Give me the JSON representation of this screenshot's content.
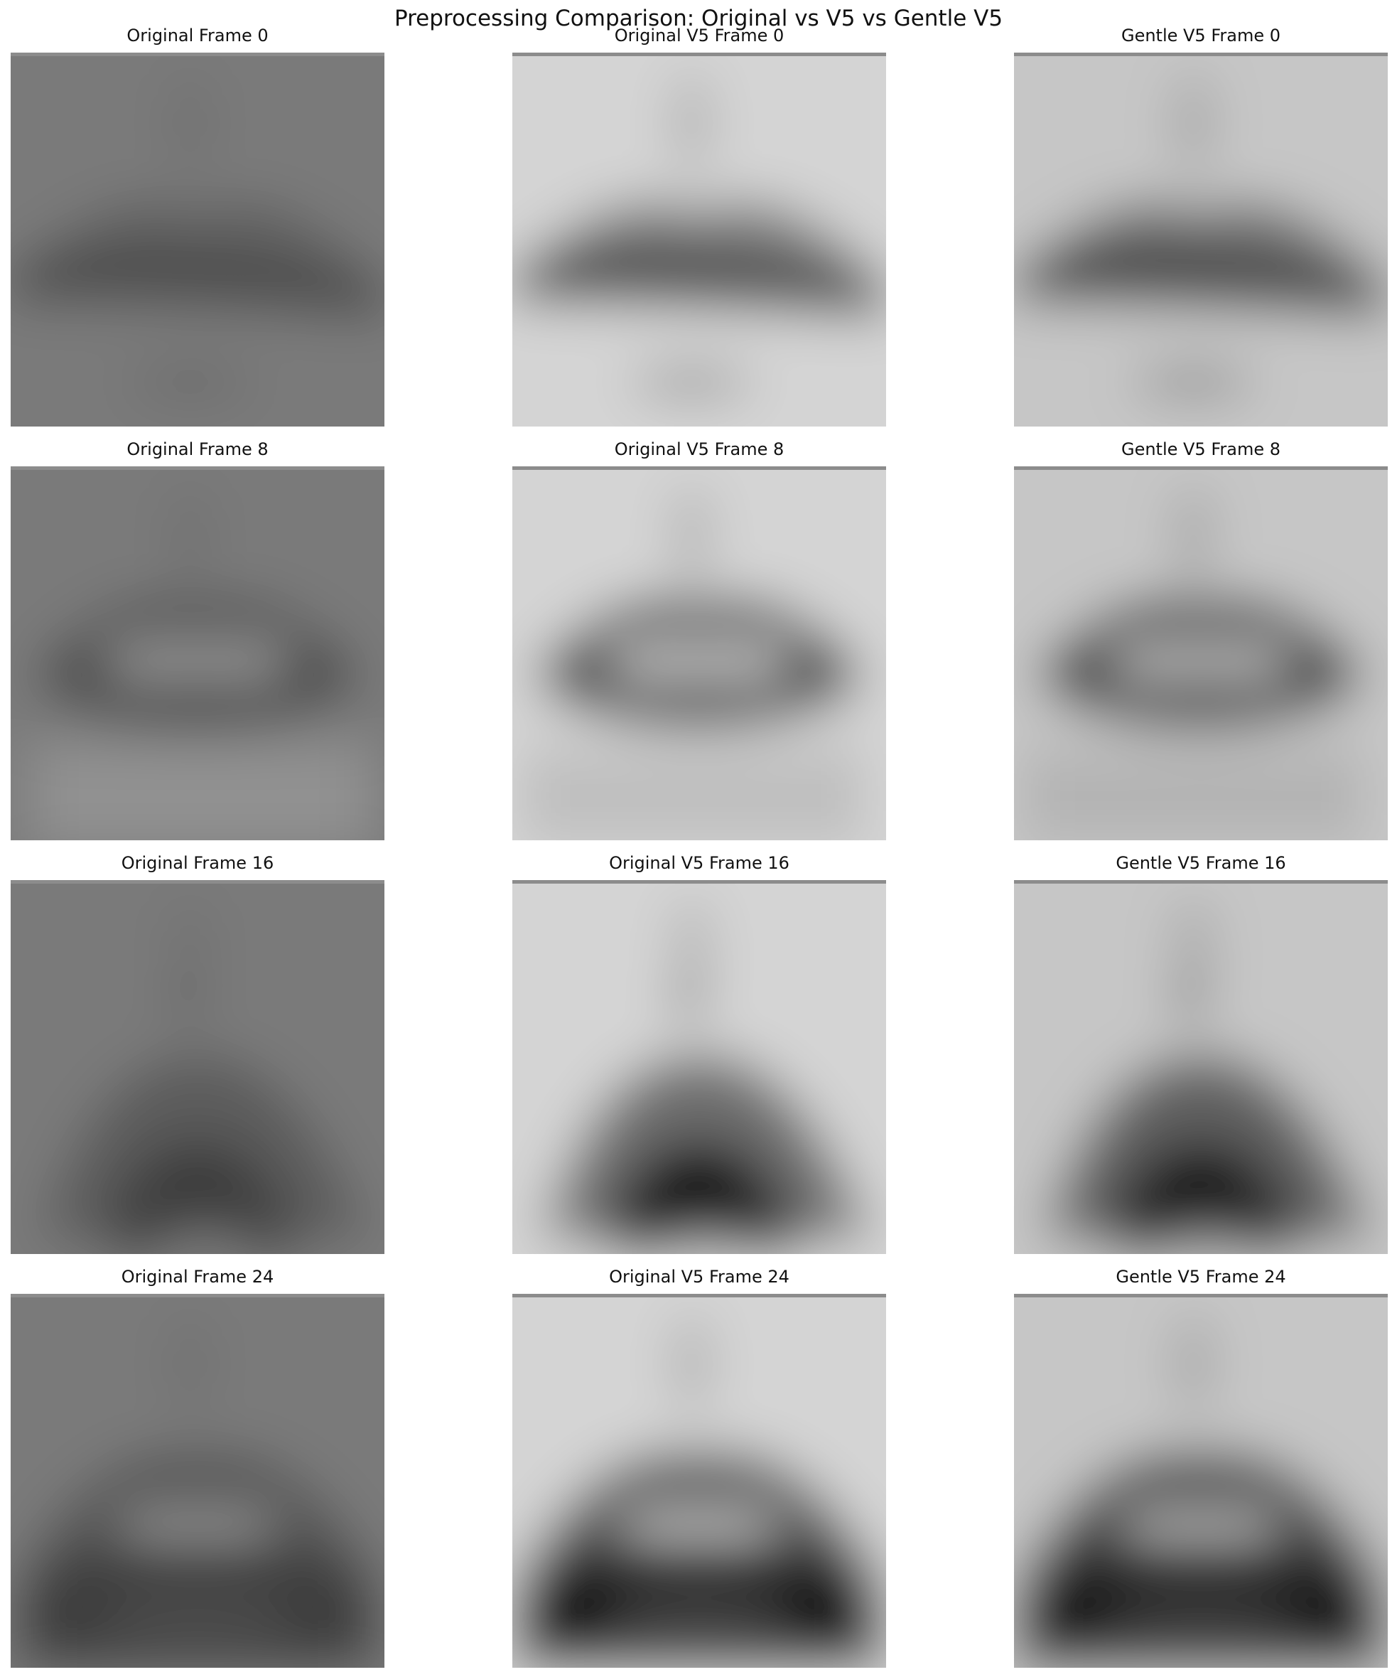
{
  "figure": {
    "title": "Preprocessing Comparison: Original vs V5 vs Gentle V5"
  },
  "columns": [
    "original",
    "original_v5",
    "gentle_v5"
  ],
  "panels": [
    {
      "title": "Original Frame 0",
      "frame": 0,
      "variant": "original",
      "mouth": "closed"
    },
    {
      "title": "Original V5 Frame 0",
      "frame": 0,
      "variant": "original_v5",
      "mouth": "closed"
    },
    {
      "title": "Gentle V5 Frame 0",
      "frame": 0,
      "variant": "gentle_v5",
      "mouth": "closed"
    },
    {
      "title": "Original Frame 8",
      "frame": 8,
      "variant": "original",
      "mouth": "teeth"
    },
    {
      "title": "Original V5 Frame 8",
      "frame": 8,
      "variant": "original_v5",
      "mouth": "teeth"
    },
    {
      "title": "Gentle V5 Frame 8",
      "frame": 8,
      "variant": "gentle_v5",
      "mouth": "teeth"
    },
    {
      "title": "Original Frame 16",
      "frame": 16,
      "variant": "original",
      "mouth": "open"
    },
    {
      "title": "Original V5 Frame 16",
      "frame": 16,
      "variant": "original_v5",
      "mouth": "open"
    },
    {
      "title": "Gentle V5 Frame 16",
      "frame": 16,
      "variant": "gentle_v5",
      "mouth": "open"
    },
    {
      "title": "Original Frame 24",
      "frame": 24,
      "variant": "original",
      "mouth": "wide"
    },
    {
      "title": "Original V5 Frame 24",
      "frame": 24,
      "variant": "original_v5",
      "mouth": "wide"
    },
    {
      "title": "Gentle V5 Frame 24",
      "frame": 24,
      "variant": "gentle_v5",
      "mouth": "wide"
    }
  ],
  "colors": {
    "original": {
      "bg": "#7a7a7a",
      "mid": "#565656",
      "dark": "#3a3a3a",
      "light": "#9a9a9a"
    },
    "original_v5": {
      "bg": "#d4d4d4",
      "mid": "#5a5a5a",
      "dark": "#101010",
      "light": "#c8c8c8"
    },
    "gentle_v5": {
      "bg": "#c6c6c6",
      "mid": "#4e4e4e",
      "dark": "#141414",
      "light": "#bdbdbd"
    }
  }
}
